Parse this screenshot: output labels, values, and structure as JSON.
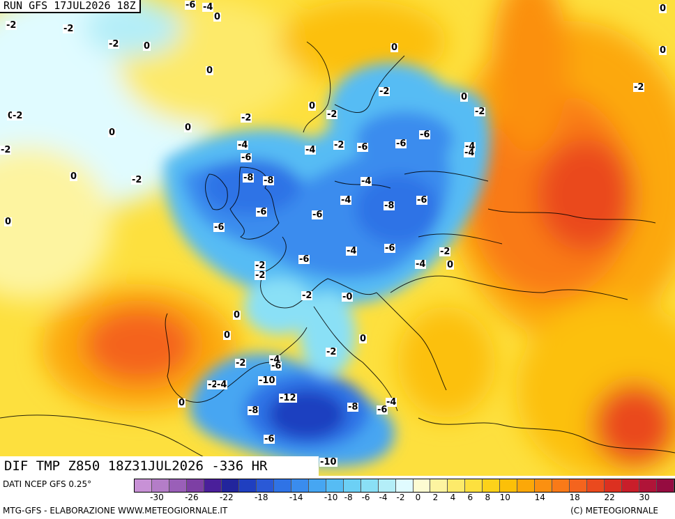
{
  "header": {
    "run_label": "RUN GFS 17JUL2026 18Z"
  },
  "variable_title": "DIF TMP Z850 18Z31JUL2026 -336 HR",
  "legend": {
    "title": "DATI NCEP GFS 0.25°",
    "ticks": [
      "-30",
      "-26",
      "-22",
      "-18",
      "-14",
      "-10",
      "-8",
      "-6",
      "-4",
      "-2",
      "0",
      "2",
      "4",
      "6",
      "8",
      "10",
      "14",
      "18",
      "22",
      "30"
    ],
    "colors": [
      "#c891d6",
      "#b47dc8",
      "#9a5fb8",
      "#7d3fa4",
      "#4a1f9a",
      "#22259c",
      "#1f3fc0",
      "#2a59d6",
      "#2f73e6",
      "#3a8cee",
      "#46a6f2",
      "#56bcf4",
      "#6cd0f5",
      "#8ae0f6",
      "#b4eef8",
      "#e0fbff",
      "#fdfcd2",
      "#fdf4a0",
      "#fdea6a",
      "#fde03e",
      "#fcd21a",
      "#fcc008",
      "#fca808",
      "#fb9010",
      "#f97a18",
      "#f4641e",
      "#ea4a1e",
      "#dc3020",
      "#c91e2a",
      "#b01438",
      "#950c40"
    ]
  },
  "map_labels": [
    {
      "t": "-6"
    },
    {
      "t": "-4"
    },
    {
      "t": "0"
    },
    {
      "t": "-2"
    },
    {
      "t": "-2"
    },
    {
      "t": "-2"
    },
    {
      "t": "0"
    },
    {
      "t": "0"
    },
    {
      "t": "0"
    },
    {
      "t": "-2"
    },
    {
      "t": "0"
    },
    {
      "t": "-2"
    },
    {
      "t": "0"
    },
    {
      "t": "-2"
    },
    {
      "t": "0"
    },
    {
      "t": "-4"
    },
    {
      "t": "-2"
    },
    {
      "t": "0"
    },
    {
      "t": "-2"
    },
    {
      "t": "-2"
    },
    {
      "t": "0"
    },
    {
      "t": "0"
    },
    {
      "t": "-2"
    },
    {
      "t": "0"
    },
    {
      "t": "-2"
    },
    {
      "t": "0"
    },
    {
      "t": "-4"
    },
    {
      "t": "-6"
    },
    {
      "t": "-8"
    },
    {
      "t": "-8"
    },
    {
      "t": "-4"
    },
    {
      "t": "-2"
    },
    {
      "t": "-6"
    },
    {
      "t": "-6"
    },
    {
      "t": "-6"
    },
    {
      "t": "-4"
    },
    {
      "t": "-4"
    },
    {
      "t": "-8"
    },
    {
      "t": "-6"
    },
    {
      "t": "-6"
    },
    {
      "t": "-6"
    },
    {
      "t": "-4"
    },
    {
      "t": "-6"
    },
    {
      "t": "-2"
    },
    {
      "t": "-4"
    },
    {
      "t": "0"
    },
    {
      "t": "-4"
    },
    {
      "t": "-2"
    },
    {
      "t": "-6"
    },
    {
      "t": "-6"
    },
    {
      "t": "-2"
    },
    {
      "t": "-0"
    },
    {
      "t": "-2"
    },
    {
      "t": "0"
    },
    {
      "t": "0"
    },
    {
      "t": "0"
    },
    {
      "t": "-4"
    },
    {
      "t": "-6"
    },
    {
      "t": "-2"
    },
    {
      "t": "-2"
    },
    {
      "t": "-2"
    },
    {
      "t": "-4"
    },
    {
      "t": "-10"
    },
    {
      "t": "-12"
    },
    {
      "t": "-8"
    },
    {
      "t": "-8"
    },
    {
      "t": "-6"
    },
    {
      "t": "-4"
    },
    {
      "t": "0"
    },
    {
      "t": "-6"
    },
    {
      "t": "-10"
    },
    {
      "t": "0"
    }
  ],
  "footer": {
    "left": "MTG-GFS - ELABORAZIONE WWW.METEOGIORNALE.IT",
    "right": "(C) METEOGIORNALE"
  }
}
